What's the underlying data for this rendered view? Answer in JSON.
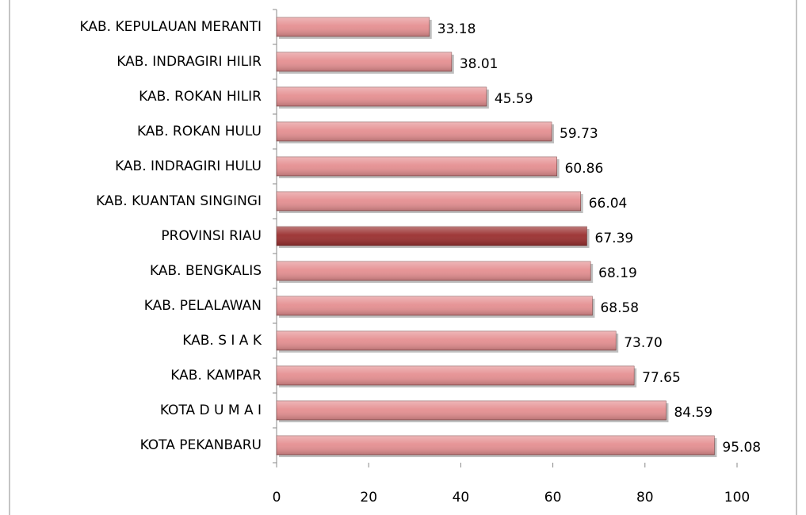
{
  "chart_data": {
    "type": "barh",
    "categories": [
      "KAB. KEPULAUAN MERANTI",
      "KAB. INDRAGIRI HILIR",
      "KAB. ROKAN HILIR",
      "KAB. ROKAN HULU",
      "KAB. INDRAGIRI HULU",
      "KAB. KUANTAN SINGINGI",
      "PROVINSI RIAU",
      "KAB. BENGKALIS",
      "KAB. PELALAWAN",
      "KAB. S I A K",
      "KAB. KAMPAR",
      "KOTA D U M A I",
      "KOTA PEKANBARU"
    ],
    "values": [
      33.18,
      38.01,
      45.59,
      59.73,
      60.86,
      66.04,
      67.39,
      68.19,
      68.58,
      73.7,
      77.65,
      84.59,
      95.08
    ],
    "value_labels": [
      "33.18",
      "38.01",
      "45.59",
      "59.73",
      "60.86",
      "66.04",
      "67.39",
      "68.19",
      "68.58",
      "73.70",
      "77.65",
      "84.59",
      "95.08"
    ],
    "colors": [
      "#e58f91",
      "#e58f91",
      "#e58f91",
      "#e58f91",
      "#e58f91",
      "#e58f91",
      "#9a2f2f",
      "#e58f91",
      "#e58f91",
      "#e58f91",
      "#e58f91",
      "#e58f91",
      "#e58f91"
    ],
    "xlim": [
      0,
      100
    ],
    "xticks": [
      0,
      20,
      40,
      60,
      80,
      100
    ]
  }
}
